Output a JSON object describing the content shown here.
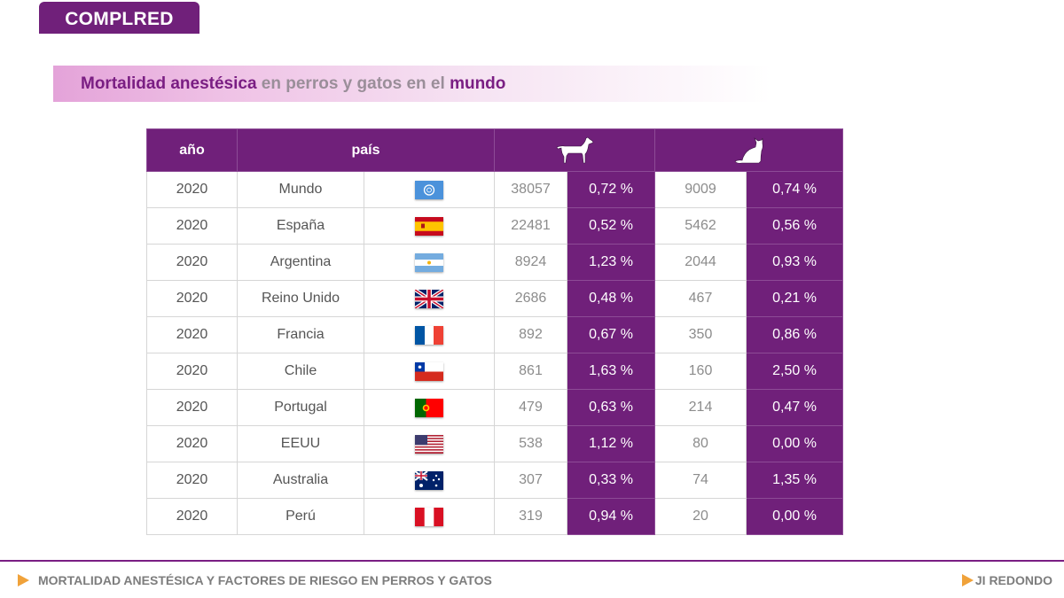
{
  "brand": "COMPLRED",
  "title": {
    "part1": "Mortalidad anestésica",
    "part2": " en perros y gatos en el ",
    "part3": "mundo"
  },
  "table": {
    "headers": {
      "year": "año",
      "country": "país",
      "dog_icon": "dog-icon",
      "cat_icon": "cat-icon"
    },
    "rows": [
      {
        "year": "2020",
        "country": "Mundo",
        "flag": "un",
        "dogs": "38057",
        "dog_pct": "0,72 %",
        "cats": "9009",
        "cat_pct": "0,74 %"
      },
      {
        "year": "2020",
        "country": "España",
        "flag": "es",
        "dogs": "22481",
        "dog_pct": "0,52 %",
        "cats": "5462",
        "cat_pct": "0,56 %"
      },
      {
        "year": "2020",
        "country": "Argentina",
        "flag": "ar",
        "dogs": "8924",
        "dog_pct": "1,23 %",
        "cats": "2044",
        "cat_pct": "0,93 %"
      },
      {
        "year": "2020",
        "country": "Reino Unido",
        "flag": "gb",
        "dogs": "2686",
        "dog_pct": "0,48 %",
        "cats": "467",
        "cat_pct": "0,21 %"
      },
      {
        "year": "2020",
        "country": "Francia",
        "flag": "fr",
        "dogs": "892",
        "dog_pct": "0,67 %",
        "cats": "350",
        "cat_pct": "0,86 %"
      },
      {
        "year": "2020",
        "country": "Chile",
        "flag": "cl",
        "dogs": "861",
        "dog_pct": "1,63 %",
        "cats": "160",
        "cat_pct": "2,50 %"
      },
      {
        "year": "2020",
        "country": "Portugal",
        "flag": "pt",
        "dogs": "479",
        "dog_pct": "0,63 %",
        "cats": "214",
        "cat_pct": "0,47 %"
      },
      {
        "year": "2020",
        "country": "EEUU",
        "flag": "us",
        "dogs": "538",
        "dog_pct": "1,12 %",
        "cats": "80",
        "cat_pct": "0,00 %"
      },
      {
        "year": "2020",
        "country": "Australia",
        "flag": "au",
        "dogs": "307",
        "dog_pct": "0,33 %",
        "cats": "74",
        "cat_pct": "1,35 %"
      },
      {
        "year": "2020",
        "country": "Perú",
        "flag": "pe",
        "dogs": "319",
        "dog_pct": "0,94 %",
        "cats": "20",
        "cat_pct": "0,00 %"
      }
    ]
  },
  "footer": {
    "left": "MORTALIDAD ANESTÉSICA Y FACTORES DE RIESGO EN PERROS Y GATOS",
    "right": "JI REDONDO"
  },
  "colors": {
    "primary": "#70207a",
    "accent": "#f0a23a",
    "text_muted": "#8c8c8c"
  }
}
